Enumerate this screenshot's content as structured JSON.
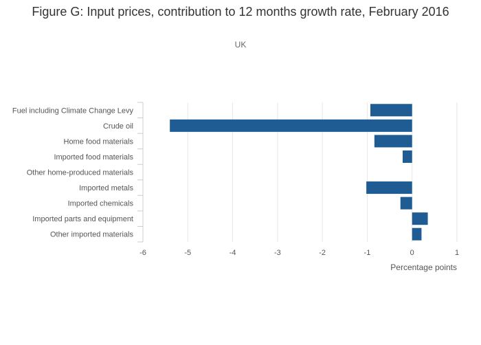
{
  "chart_data": {
    "type": "bar",
    "orientation": "horizontal",
    "title": "Figure G: Input prices, contribution to 12 months growth rate, February 2016",
    "subtitle": "UK",
    "xlabel": "Percentage points",
    "ylabel": "",
    "xlim": [
      -6,
      1
    ],
    "xticks": [
      -6,
      -5,
      -4,
      -3,
      -2,
      -1,
      0,
      1
    ],
    "grid": true,
    "legend": "none",
    "bar_color": "#1f5c94",
    "categories": [
      "Fuel including Climate Change Levy",
      "Crude oil",
      "Home food materials",
      "Imported food materials",
      "Other home-produced materials",
      "Imported metals",
      "Imported chemicals",
      "Imported parts and equipment",
      "Other imported materials"
    ],
    "values": [
      -0.93,
      -5.4,
      -0.84,
      -0.21,
      0.0,
      -1.02,
      -0.26,
      0.35,
      0.21
    ]
  }
}
